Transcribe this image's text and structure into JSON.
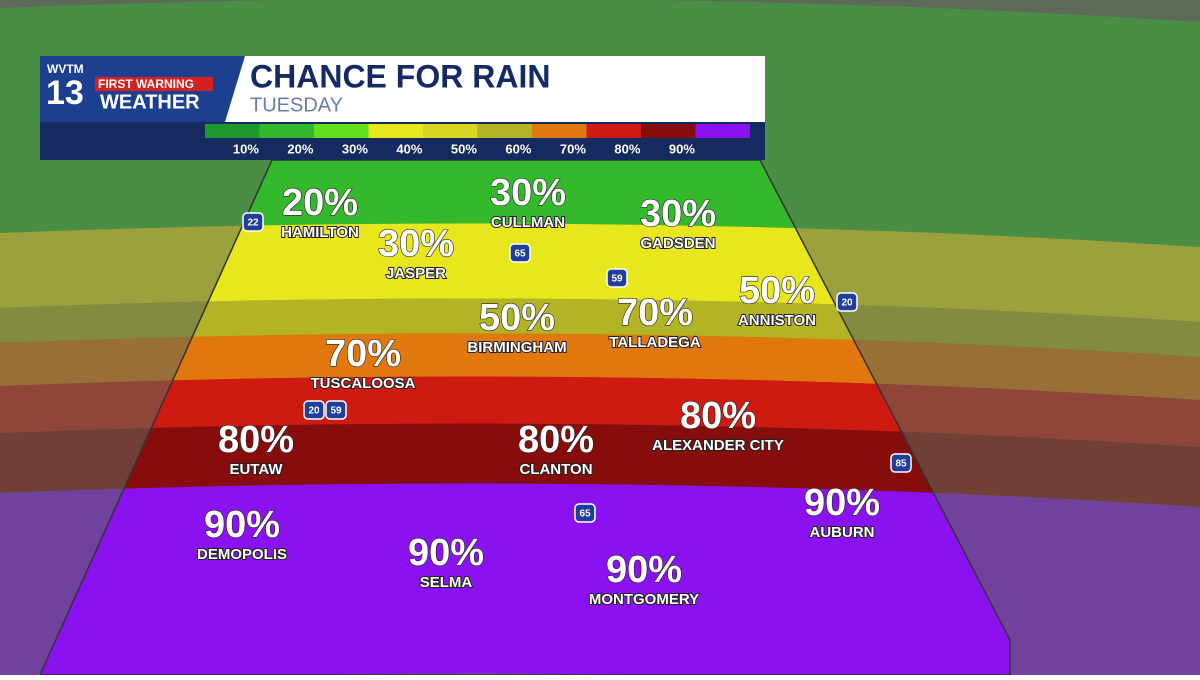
{
  "header": {
    "station": "WVTM",
    "channel": "13",
    "brand": "FIRST WARNING",
    "brand_sub": "WEATHER",
    "title": "CHANCE FOR RAIN",
    "subtitle": "TUESDAY"
  },
  "legend": {
    "colors": [
      "#1e9a2c",
      "#34b92c",
      "#62e01c",
      "#e8e61c",
      "#d8d622",
      "#b3b424",
      "#e0780e",
      "#cf1a12",
      "#870c0c",
      "#8a12f0"
    ],
    "labels": [
      "10%",
      "20%",
      "30%",
      "40%",
      "50%",
      "60%",
      "70%",
      "80%",
      "90%"
    ]
  },
  "cities": [
    {
      "name": "HAMILTON",
      "chance": "20%"
    },
    {
      "name": "CULLMAN",
      "chance": "30%"
    },
    {
      "name": "GADSDEN",
      "chance": "30%"
    },
    {
      "name": "JASPER",
      "chance": "30%"
    },
    {
      "name": "BIRMINGHAM",
      "chance": "50%"
    },
    {
      "name": "TALLADEGA",
      "chance": "70%"
    },
    {
      "name": "ANNISTON",
      "chance": "50%"
    },
    {
      "name": "TUSCALOOSA",
      "chance": "70%"
    },
    {
      "name": "EUTAW",
      "chance": "80%"
    },
    {
      "name": "CLANTON",
      "chance": "80%"
    },
    {
      "name": "ALEXANDER CITY",
      "chance": "80%"
    },
    {
      "name": "DEMOPOLIS",
      "chance": "90%"
    },
    {
      "name": "SELMA",
      "chance": "90%"
    },
    {
      "name": "MONTGOMERY",
      "chance": "90%"
    },
    {
      "name": "AUBURN",
      "chance": "90%"
    }
  ],
  "shields": [
    "22",
    "65",
    "59",
    "20",
    "20",
    "59",
    "65",
    "85"
  ]
}
